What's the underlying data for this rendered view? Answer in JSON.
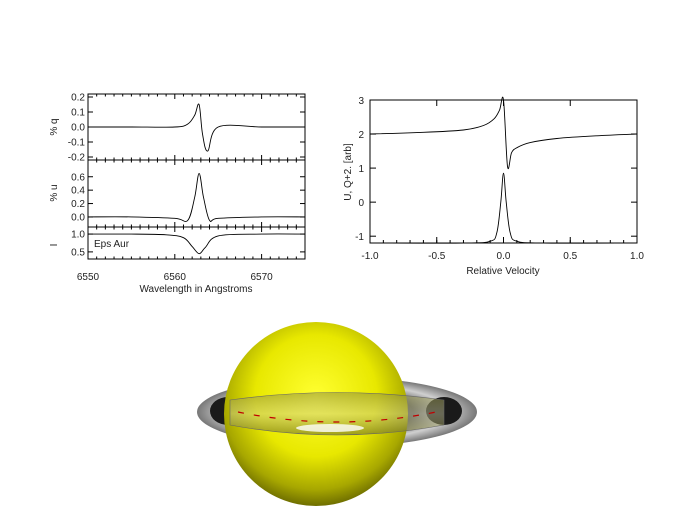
{
  "chart_data": [
    {
      "type": "line",
      "panels": [
        {
          "ylabel": "% q",
          "ylim": [
            -0.22,
            0.22
          ],
          "yticks": [
            "0.2",
            "0.1",
            "0.0",
            "-0.1",
            "-0.2"
          ],
          "ytick_values": [
            0.2,
            0.1,
            0.0,
            -0.1,
            -0.2
          ]
        },
        {
          "ylabel": "% u",
          "ylim": [
            -0.15,
            0.85
          ],
          "yticks": [
            "0.6",
            "0.4",
            "0.2",
            "0.0"
          ],
          "ytick_values": [
            0.6,
            0.4,
            0.2,
            0.0
          ]
        },
        {
          "ylabel": "I",
          "ylim": [
            0.3,
            1.2
          ],
          "yticks": [
            "1.0",
            "0.5"
          ],
          "ytick_values": [
            1.0,
            0.5
          ],
          "annotation": "Eps Aur"
        }
      ],
      "xlabel": "Wavelength in Angstroms",
      "xlim": [
        6550,
        6575
      ],
      "xticks": [
        "6550",
        "6560",
        "6570"
      ],
      "xtick_values": [
        6550,
        6560,
        6570
      ],
      "series": [
        {
          "panel": 0,
          "x": [
            6550,
            6555,
            6560,
            6561.5,
            6562.3,
            6562.8,
            6563.2,
            6563.8,
            6565,
            6570,
            6575
          ],
          "values": [
            0.0,
            0.0,
            0.0,
            0.02,
            0.08,
            0.15,
            -0.05,
            -0.16,
            0.0,
            0.0,
            0.0
          ]
        },
        {
          "panel": 1,
          "x": [
            6550,
            6555,
            6560,
            6561.5,
            6562.3,
            6562.8,
            6563.3,
            6564,
            6565,
            6570,
            6575
          ],
          "values": [
            0.0,
            0.0,
            -0.02,
            -0.05,
            0.3,
            0.65,
            0.3,
            -0.05,
            -0.02,
            0.0,
            0.0
          ]
        },
        {
          "panel": 2,
          "x": [
            6550,
            6555,
            6559,
            6561,
            6562,
            6562.8,
            6563.5,
            6565,
            6570,
            6575
          ],
          "values": [
            1.0,
            1.0,
            0.98,
            0.9,
            0.65,
            0.45,
            0.62,
            0.95,
            1.0,
            1.0
          ]
        }
      ]
    },
    {
      "type": "line",
      "xlabel": "Relative Velocity",
      "ylabel": "U, Q+2. [arb]",
      "xlim": [
        -1.0,
        1.0
      ],
      "ylim": [
        -1.2,
        3.0
      ],
      "xticks": [
        "-1.0",
        "-0.5",
        "0.0",
        "0.5",
        "1.0"
      ],
      "xtick_values": [
        -1.0,
        -0.5,
        0.0,
        0.5,
        1.0
      ],
      "yticks": [
        "3",
        "2",
        "1",
        "0",
        "-1"
      ],
      "ytick_values": [
        3,
        2,
        1,
        0,
        -1
      ],
      "series": [
        {
          "x": [
            -1.0,
            -0.6,
            -0.3,
            -0.15,
            -0.07,
            -0.03,
            0.0,
            0.03,
            0.06,
            0.1,
            0.2,
            0.4,
            0.7,
            1.0
          ],
          "values": [
            2.0,
            2.05,
            2.12,
            2.25,
            2.45,
            2.7,
            3.0,
            1.05,
            1.45,
            1.6,
            1.75,
            1.87,
            1.95,
            2.0
          ]
        },
        {
          "x": [
            -1.0,
            -0.3,
            -0.1,
            -0.05,
            -0.02,
            0.0,
            0.02,
            0.05,
            0.1,
            0.3,
            1.0
          ],
          "values": [
            -1.2,
            -1.2,
            -1.15,
            -0.9,
            0.0,
            0.85,
            0.0,
            -0.9,
            -1.15,
            -1.2,
            -1.2
          ]
        }
      ]
    }
  ]
}
